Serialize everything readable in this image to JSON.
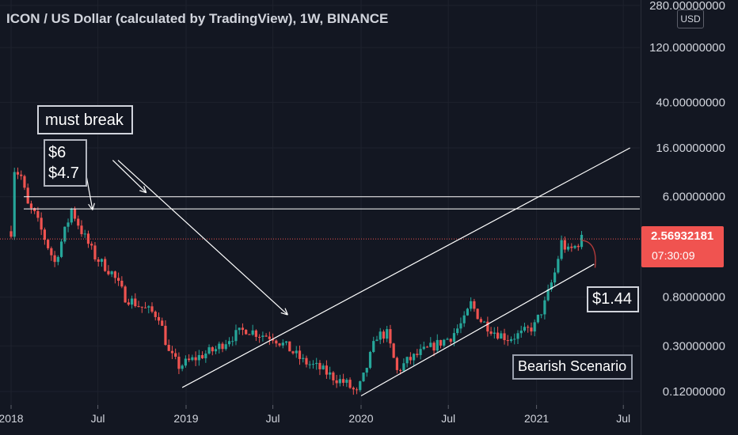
{
  "header": {
    "title": "ICON / US Dollar (calculated by TradingView), 1W, BINANCE",
    "currency": "USD"
  },
  "current_price": {
    "value": "2.56932181",
    "countdown": "07:30:09",
    "color": "#f05350"
  },
  "annotations": {
    "must_break": "must break",
    "level_6": "$6",
    "level_47": "$4.7",
    "target": "$1.44",
    "scenario": "Bearish Scenario"
  },
  "colors": {
    "background": "#131722",
    "up": "#26a69a",
    "down": "#ef5350",
    "lines": "#ffffff"
  },
  "chart_data": {
    "type": "candlestick",
    "title": "ICON / US Dollar (calculated by TradingView), 1W, BINANCE",
    "scale": "log",
    "ylim": [
      0.11,
      280
    ],
    "y_ticks": [
      {
        "value": 280,
        "label": "280.00000000"
      },
      {
        "value": 120,
        "label": "120.00000000"
      },
      {
        "value": 40,
        "label": "40.00000000"
      },
      {
        "value": 16,
        "label": "16.00000000"
      },
      {
        "value": 6,
        "label": "6.00000000"
      },
      {
        "value": 0.8,
        "label": "0.80000000"
      },
      {
        "value": 0.3,
        "label": "0.30000000"
      },
      {
        "value": 0.12,
        "label": "0.12000000"
      }
    ],
    "x_range": [
      "2018-01-01",
      "2021-07-20"
    ],
    "x_ticks": [
      {
        "date": "2018-01-01",
        "label": "2018"
      },
      {
        "date": "2018-07-01",
        "label": "Jul"
      },
      {
        "date": "2019-01-01",
        "label": "2019"
      },
      {
        "date": "2019-07-01",
        "label": "Jul"
      },
      {
        "date": "2020-01-01",
        "label": "2020"
      },
      {
        "date": "2020-07-01",
        "label": "Jul"
      },
      {
        "date": "2021-01-01",
        "label": "2021"
      },
      {
        "date": "2021-07-01",
        "label": "Jul"
      }
    ],
    "price_path": [
      [
        "2018-01-01",
        3.0
      ],
      [
        "2018-01-08",
        10.5
      ],
      [
        "2018-01-22",
        9.0
      ],
      [
        "2018-02-05",
        5.0
      ],
      [
        "2018-02-19",
        4.2
      ],
      [
        "2018-03-12",
        2.6
      ],
      [
        "2018-04-02",
        1.6
      ],
      [
        "2018-04-30",
        3.7
      ],
      [
        "2018-05-07",
        4.7
      ],
      [
        "2018-05-28",
        3.0
      ],
      [
        "2018-06-25",
        1.8
      ],
      [
        "2018-07-30",
        1.3
      ],
      [
        "2018-08-27",
        0.8
      ],
      [
        "2018-10-01",
        0.65
      ],
      [
        "2018-11-05",
        0.55
      ],
      [
        "2018-11-26",
        0.26
      ],
      [
        "2018-12-17",
        0.2
      ],
      [
        "2019-01-07",
        0.22
      ],
      [
        "2019-02-04",
        0.25
      ],
      [
        "2019-03-04",
        0.28
      ],
      [
        "2019-04-01",
        0.35
      ],
      [
        "2019-05-06",
        0.42
      ],
      [
        "2019-06-03",
        0.38
      ],
      [
        "2019-07-01",
        0.36
      ],
      [
        "2019-08-05",
        0.28
      ],
      [
        "2019-09-02",
        0.22
      ],
      [
        "2019-10-07",
        0.19
      ],
      [
        "2019-11-04",
        0.16
      ],
      [
        "2019-12-02",
        0.14
      ],
      [
        "2019-12-23",
        0.115
      ],
      [
        "2020-01-06",
        0.16
      ],
      [
        "2020-02-03",
        0.37
      ],
      [
        "2020-02-24",
        0.38
      ],
      [
        "2020-03-16",
        0.18
      ],
      [
        "2020-04-06",
        0.22
      ],
      [
        "2020-05-04",
        0.26
      ],
      [
        "2020-06-01",
        0.3
      ],
      [
        "2020-07-06",
        0.36
      ],
      [
        "2020-08-03",
        0.5
      ],
      [
        "2020-08-17",
        0.7
      ],
      [
        "2020-09-07",
        0.5
      ],
      [
        "2020-10-05",
        0.4
      ],
      [
        "2020-11-02",
        0.35
      ],
      [
        "2020-11-30",
        0.38
      ],
      [
        "2020-12-28",
        0.45
      ],
      [
        "2021-01-18",
        0.7
      ],
      [
        "2021-02-08",
        1.3
      ],
      [
        "2021-02-22",
        2.4
      ],
      [
        "2021-03-08",
        2.0
      ],
      [
        "2021-03-22",
        2.2
      ],
      [
        "2021-04-05",
        2.57
      ]
    ],
    "horizontal_levels": [
      {
        "value": 6,
        "label": "$6"
      },
      {
        "value": 4.7,
        "label": "$4.7"
      },
      {
        "value": 2.56932181,
        "label": "2.56932181",
        "style": "dotted"
      }
    ],
    "trend_lines": [
      {
        "from": [
          "2018-12-24",
          0.13
        ],
        "to": [
          "2021-07-15",
          16.0
        ]
      },
      {
        "from": [
          "2020-01-01",
          0.11
        ],
        "to": [
          "2021-05-01",
          1.55
        ]
      }
    ],
    "arrows": [
      {
        "from": [
          "2018-06-01",
          12.5
        ],
        "to": [
          "2018-06-20",
          4.6
        ]
      },
      {
        "from": [
          "2018-08-01",
          12.5
        ],
        "to": [
          "2018-10-10",
          6.5
        ]
      },
      {
        "from": [
          "2018-08-12",
          12.5
        ],
        "to": [
          "2019-08-01",
          0.56
        ]
      }
    ],
    "projection": {
      "from": [
        "2021-04-05",
        2.5
      ],
      "to": [
        "2021-05-03",
        1.44
      ]
    }
  }
}
